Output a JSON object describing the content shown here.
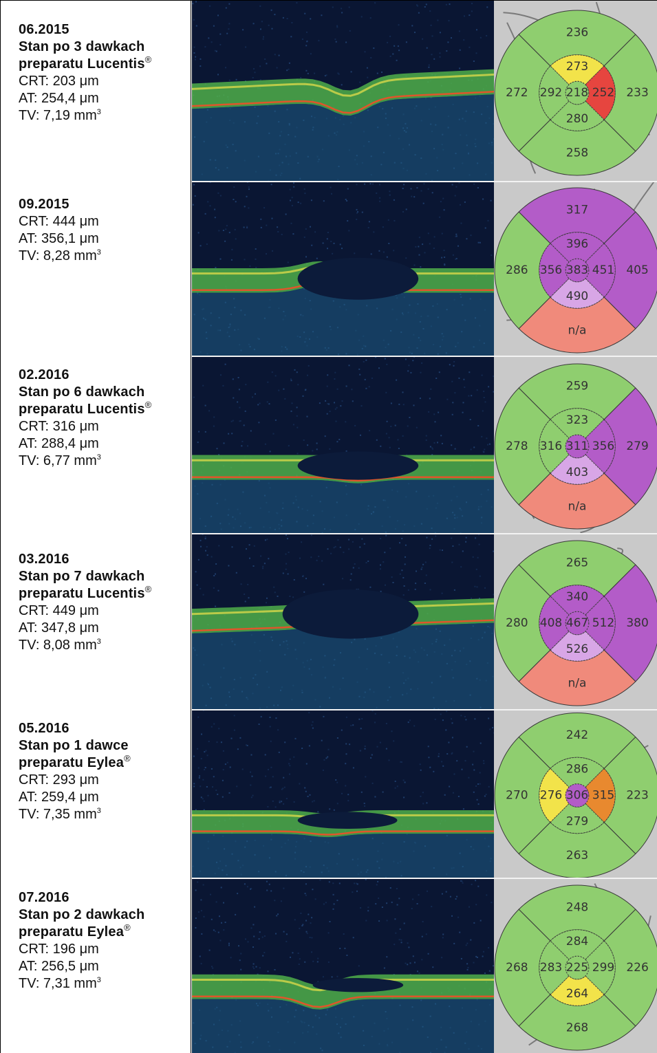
{
  "rows": [
    {
      "date": "06.2015",
      "treatment": [
        "Stan po 3 dawkach",
        "preparatu Lucentis"
      ],
      "crt": "CRT: 203 μm",
      "at": "AT: 254,4 μm",
      "tv": "TV: 7,19 mm",
      "map": {
        "outer": [
          "236",
          "233",
          "258",
          "272"
        ],
        "inner": [
          "273",
          "252",
          "280",
          "292"
        ],
        "center": "218",
        "colors": {
          "outer": [
            "#8fce6f",
            "#8fce6f",
            "#8fce6f",
            "#8fce6f"
          ],
          "inner": [
            "#f2e34a",
            "#e6453f",
            "#8fce6f",
            "#8fce6f"
          ],
          "center": "#8fce6f"
        }
      }
    },
    {
      "date": "09.2015",
      "treatment": [],
      "crt": "CRT: 444 μm",
      "at": "AT: 356,1 μm",
      "tv": "TV: 8,28 mm",
      "map": {
        "outer": [
          "317",
          "405",
          "n/a",
          "286"
        ],
        "inner": [
          "396",
          "451",
          "490",
          "356"
        ],
        "center": "383",
        "colors": {
          "outer": [
            "#b35cc8",
            "#b35cc8",
            "#f08a7b",
            "#8fce6f"
          ],
          "inner": [
            "#b35cc8",
            "#b35cc8",
            "#d8a6e6",
            "#b35cc8"
          ],
          "center": "#b35cc8"
        }
      }
    },
    {
      "date": "02.2016",
      "treatment": [
        "Stan po 6 dawkach",
        "preparatu Lucentis"
      ],
      "crt": "CRT: 316 μm",
      "at": "AT: 288,4 μm",
      "tv": "TV: 6,77 mm",
      "map": {
        "outer": [
          "259",
          "279",
          "n/a",
          "278"
        ],
        "inner": [
          "323",
          "356",
          "403",
          "316"
        ],
        "center": "311",
        "colors": {
          "outer": [
            "#8fce6f",
            "#b35cc8",
            "#f08a7b",
            "#8fce6f"
          ],
          "inner": [
            "#8fce6f",
            "#b35cc8",
            "#d8a6e6",
            "#8fce6f"
          ],
          "center": "#b35cc8"
        }
      }
    },
    {
      "date": "03.2016",
      "treatment": [
        "Stan po 7 dawkach",
        "preparatu Lucentis"
      ],
      "crt": "CRT: 449 μm",
      "at": "AT: 347,8 μm",
      "tv": "TV: 8,08 mm",
      "map": {
        "outer": [
          "265",
          "380",
          "n/a",
          "280"
        ],
        "inner": [
          "340",
          "512",
          "526",
          "408"
        ],
        "center": "467",
        "colors": {
          "outer": [
            "#8fce6f",
            "#b35cc8",
            "#f08a7b",
            "#8fce6f"
          ],
          "inner": [
            "#b35cc8",
            "#b35cc8",
            "#d8a6e6",
            "#b35cc8"
          ],
          "center": "#b35cc8"
        }
      }
    },
    {
      "date": "05.2016",
      "treatment": [
        "Stan po 1 dawce",
        "preparatu Eylea"
      ],
      "crt": "CRT: 293 μm",
      "at": "AT: 259,4 μm",
      "tv": "TV: 7,35 mm",
      "map": {
        "outer": [
          "242",
          "223",
          "263",
          "270"
        ],
        "inner": [
          "286",
          "315",
          "279",
          "276"
        ],
        "center": "306",
        "colors": {
          "outer": [
            "#8fce6f",
            "#8fce6f",
            "#8fce6f",
            "#8fce6f"
          ],
          "inner": [
            "#8fce6f",
            "#e8892f",
            "#8fce6f",
            "#f2e34a"
          ],
          "center": "#b35cc8"
        }
      }
    },
    {
      "date": "07.2016",
      "treatment": [
        "Stan po 2 dawkach",
        "preparatu Eylea"
      ],
      "crt": "CRT: 196 μm",
      "at": "AT: 256,5 μm",
      "tv": "TV: 7,31 mm",
      "map": {
        "outer": [
          "248",
          "226",
          "268",
          "268"
        ],
        "inner": [
          "284",
          "299",
          "264",
          "283"
        ],
        "center": "225",
        "colors": {
          "outer": [
            "#8fce6f",
            "#8fce6f",
            "#8fce6f",
            "#8fce6f"
          ],
          "inner": [
            "#8fce6f",
            "#8fce6f",
            "#f2e34a",
            "#8fce6f"
          ],
          "center": "#8fce6f"
        }
      }
    }
  ],
  "symbols": {
    "registered": "®",
    "cube": "3"
  }
}
